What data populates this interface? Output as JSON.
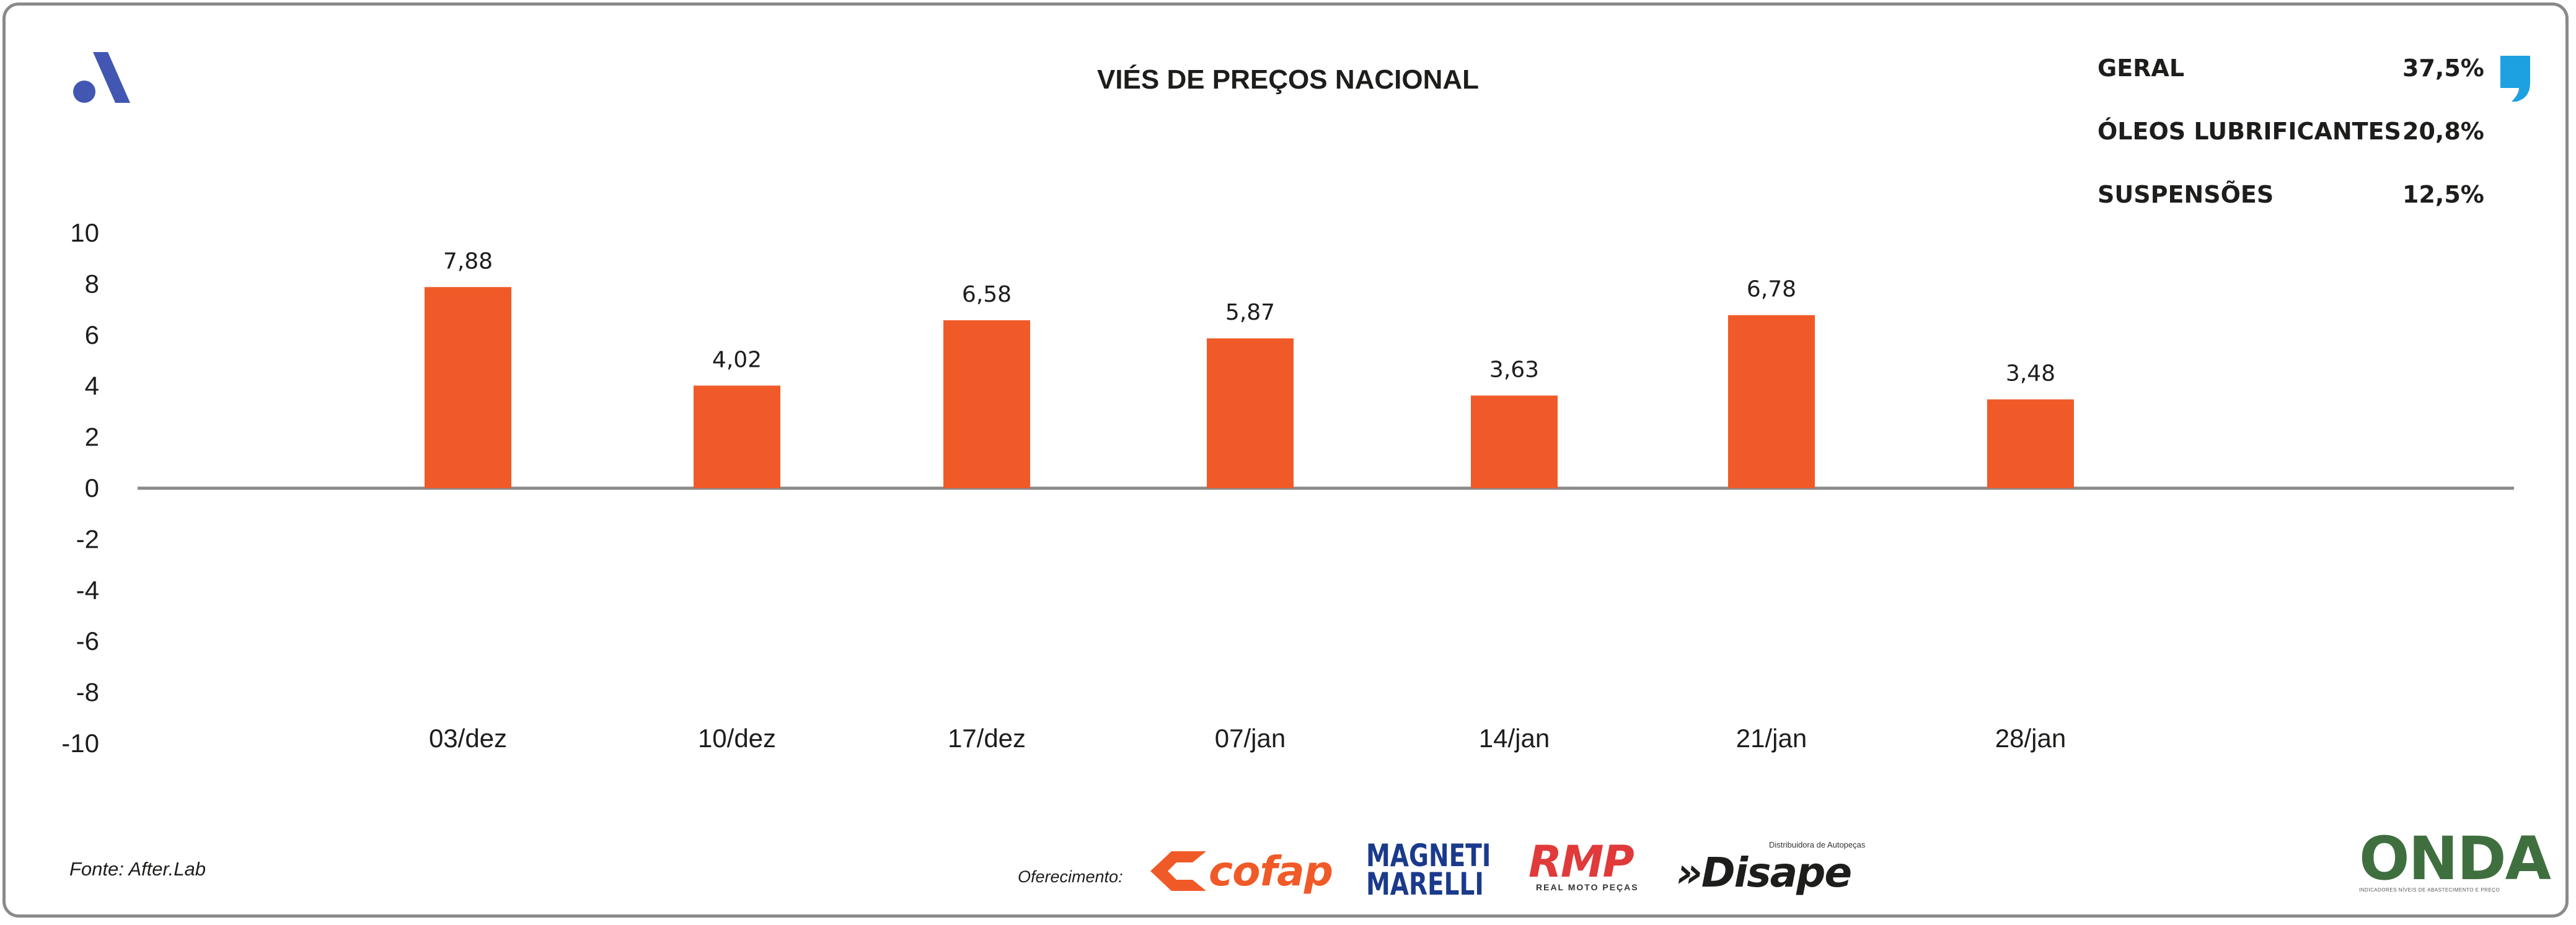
{
  "colors": {
    "bar": "#f05a28",
    "axis": "#8a8a8a",
    "text": "#1d1d1b",
    "brand": "#4257b2",
    "accent": "#1da1e0"
  },
  "header": {
    "brand_icon": "after-lab-logo-icon",
    "title": "VIÉS DE PREÇOS NACIONAL",
    "quote_icon": "quote-icon"
  },
  "stats": [
    {
      "label": "GERAL",
      "value": "37,5%"
    },
    {
      "label": "ÓLEOS LUBRIFICANTES",
      "value": "20,8%"
    },
    {
      "label": "SUSPENSÕES",
      "value": "12,5%"
    }
  ],
  "chart_data": {
    "type": "bar",
    "title": "VIÉS DE PREÇOS NACIONAL",
    "categories": [
      "03/dez",
      "10/dez",
      "17/dez",
      "07/jan",
      "14/jan",
      "21/jan",
      "28/jan"
    ],
    "values": [
      7.88,
      4.02,
      6.58,
      5.87,
      3.63,
      6.78,
      3.48
    ],
    "value_labels": [
      "7,88",
      "4,02",
      "6,58",
      "5,87",
      "3,63",
      "6,78",
      "3,48"
    ],
    "ylim": [
      -10,
      10
    ],
    "yticks": [
      10,
      8,
      6,
      4,
      2,
      0,
      -2,
      -4,
      -6,
      -8,
      -10
    ],
    "xlabel": "",
    "ylabel": "",
    "grid": false,
    "legend": "none"
  },
  "footer": {
    "source": "Fonte: After.Lab",
    "sponsor_label": "Oferecimento:",
    "sponsors": {
      "cofap": "cofap",
      "magneti_line1": "MAGNETI",
      "magneti_line2": "MARELLI",
      "rmp": "RMP",
      "rmp_sub": "REAL MOTO PEÇAS",
      "disape": "»Disape",
      "disape_sub": "Distribuidora de Autopeças"
    },
    "onda": "ONDA",
    "onda_sub": "INDICADORES NÍVEIS DE ABASTECIMENTO E PREÇO"
  }
}
